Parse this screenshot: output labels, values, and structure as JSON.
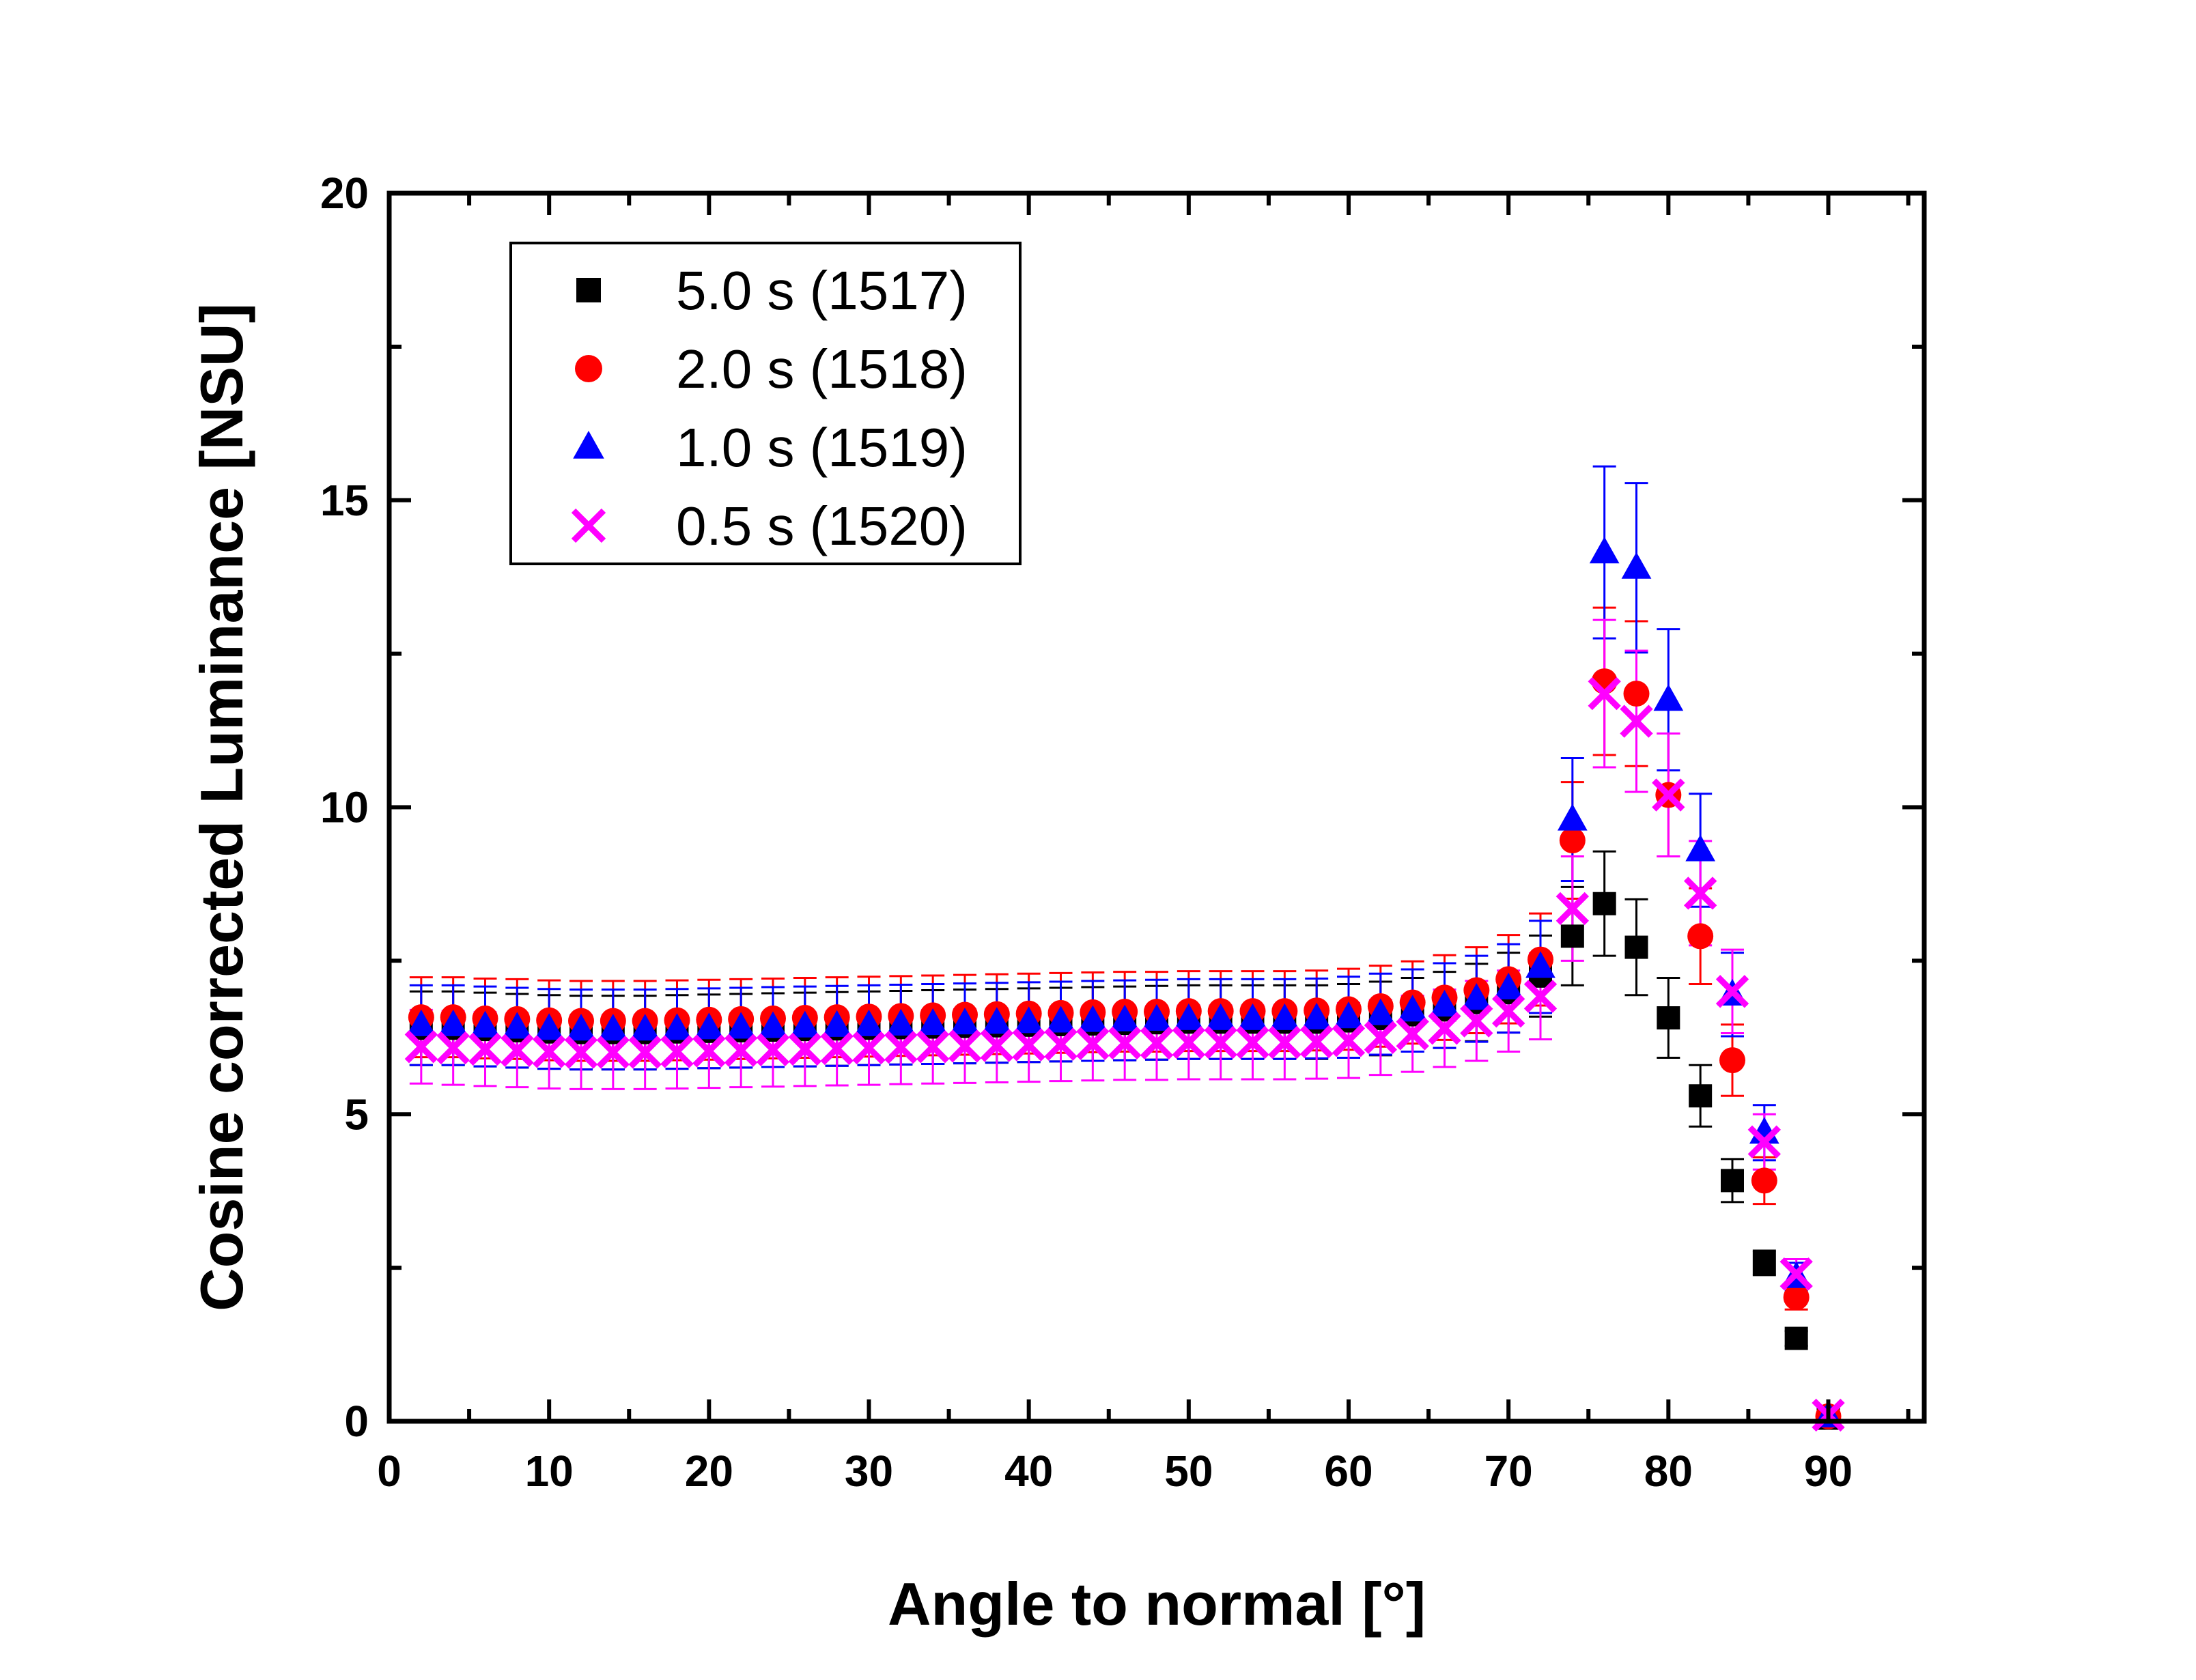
{
  "chart_data": {
    "type": "scatter",
    "title": "",
    "xlabel": "Angle to normal [°]",
    "ylabel": "Cosine corrected Luminance [NSU]",
    "xlim": [
      0,
      96
    ],
    "ylim": [
      0,
      20
    ],
    "xticks": [
      0,
      10,
      20,
      30,
      40,
      50,
      60,
      70,
      80,
      90
    ],
    "xtick_labels": [
      "0",
      "10",
      "20",
      "30",
      "40",
      "50",
      "60",
      "70",
      "80",
      "90"
    ],
    "yticks": [
      0,
      5,
      10,
      15,
      20
    ],
    "ytick_labels": [
      "0",
      "5",
      "10",
      "15",
      "20"
    ],
    "grid": false,
    "legend_position": "top-left",
    "x": [
      2,
      4,
      6,
      8,
      10,
      12,
      14,
      16,
      18,
      20,
      22,
      24,
      26,
      28,
      30,
      32,
      34,
      36,
      38,
      40,
      42,
      44,
      46,
      48,
      50,
      52,
      54,
      56,
      58,
      60,
      62,
      64,
      66,
      68,
      70,
      72,
      74,
      76,
      78,
      80,
      82,
      84,
      86,
      88,
      90
    ],
    "series": [
      {
        "name": "5.0 s (1517)",
        "marker": "square",
        "color": "#000000",
        "values": [
          6.4,
          6.4,
          6.38,
          6.36,
          6.34,
          6.33,
          6.33,
          6.33,
          6.34,
          6.35,
          6.36,
          6.37,
          6.38,
          6.39,
          6.4,
          6.41,
          6.42,
          6.43,
          6.44,
          6.45,
          6.46,
          6.47,
          6.48,
          6.49,
          6.5,
          6.5,
          6.5,
          6.5,
          6.5,
          6.52,
          6.56,
          6.62,
          6.7,
          6.82,
          6.98,
          7.25,
          7.9,
          8.43,
          7.72,
          6.57,
          5.3,
          3.92,
          2.58,
          1.35,
          0.05
        ],
        "errors": [
          0.6,
          0.6,
          0.6,
          0.6,
          0.6,
          0.6,
          0.6,
          0.6,
          0.6,
          0.6,
          0.6,
          0.6,
          0.6,
          0.6,
          0.6,
          0.6,
          0.6,
          0.6,
          0.6,
          0.6,
          0.6,
          0.6,
          0.6,
          0.6,
          0.6,
          0.6,
          0.6,
          0.6,
          0.6,
          0.6,
          0.6,
          0.6,
          0.62,
          0.63,
          0.65,
          0.66,
          0.8,
          0.85,
          0.78,
          0.65,
          0.5,
          0.35,
          0.2,
          0.12,
          0.05
        ]
      },
      {
        "name": "2.0 s (1518)",
        "marker": "circle",
        "color": "#ff0000",
        "values": [
          6.58,
          6.58,
          6.56,
          6.55,
          6.53,
          6.52,
          6.52,
          6.52,
          6.53,
          6.54,
          6.55,
          6.56,
          6.57,
          6.58,
          6.59,
          6.6,
          6.61,
          6.62,
          6.63,
          6.64,
          6.65,
          6.66,
          6.67,
          6.67,
          6.68,
          6.68,
          6.68,
          6.68,
          6.69,
          6.71,
          6.76,
          6.82,
          6.9,
          7.02,
          7.2,
          7.52,
          9.46,
          12.05,
          11.85,
          10.2,
          7.9,
          5.88,
          3.92,
          2.02,
          0.08
        ],
        "errors": [
          0.65,
          0.65,
          0.65,
          0.65,
          0.65,
          0.65,
          0.65,
          0.65,
          0.65,
          0.65,
          0.65,
          0.65,
          0.65,
          0.65,
          0.65,
          0.65,
          0.65,
          0.65,
          0.65,
          0.65,
          0.65,
          0.65,
          0.65,
          0.65,
          0.65,
          0.65,
          0.65,
          0.65,
          0.65,
          0.66,
          0.66,
          0.67,
          0.69,
          0.7,
          0.72,
          0.75,
          0.95,
          1.2,
          1.18,
          1.0,
          0.78,
          0.58,
          0.38,
          0.2,
          0.05
        ]
      },
      {
        "name": "1.0 s (1519)",
        "marker": "triangle",
        "color": "#0000ff",
        "values": [
          6.45,
          6.45,
          6.43,
          6.41,
          6.39,
          6.38,
          6.38,
          6.38,
          6.39,
          6.4,
          6.41,
          6.42,
          6.43,
          6.44,
          6.45,
          6.46,
          6.47,
          6.48,
          6.49,
          6.5,
          6.51,
          6.52,
          6.53,
          6.54,
          6.55,
          6.55,
          6.55,
          6.55,
          6.56,
          6.58,
          6.63,
          6.69,
          6.77,
          6.88,
          7.05,
          7.4,
          9.8,
          14.15,
          13.9,
          11.75,
          9.3,
          6.95,
          4.7,
          2.35,
          0.08
        ],
        "errors": [
          0.65,
          0.65,
          0.65,
          0.65,
          0.65,
          0.65,
          0.65,
          0.65,
          0.65,
          0.65,
          0.65,
          0.65,
          0.65,
          0.65,
          0.65,
          0.65,
          0.65,
          0.65,
          0.65,
          0.65,
          0.65,
          0.65,
          0.65,
          0.65,
          0.65,
          0.65,
          0.65,
          0.65,
          0.65,
          0.66,
          0.66,
          0.67,
          0.69,
          0.7,
          0.72,
          0.75,
          1.0,
          1.4,
          1.38,
          1.15,
          0.92,
          0.68,
          0.45,
          0.23,
          0.05
        ]
      },
      {
        "name": "0.5 s (1520)",
        "marker": "cross",
        "color": "#ff00ff",
        "values": [
          6.1,
          6.08,
          6.06,
          6.04,
          6.02,
          6.01,
          6.01,
          6.01,
          6.02,
          6.03,
          6.04,
          6.05,
          6.06,
          6.07,
          6.08,
          6.09,
          6.1,
          6.11,
          6.12,
          6.13,
          6.14,
          6.15,
          6.16,
          6.16,
          6.17,
          6.17,
          6.17,
          6.17,
          6.18,
          6.2,
          6.25,
          6.31,
          6.4,
          6.52,
          6.68,
          6.92,
          8.35,
          11.85,
          11.4,
          10.2,
          8.6,
          7.0,
          4.55,
          2.4,
          0.1
        ],
        "errors": [
          0.6,
          0.6,
          0.6,
          0.6,
          0.6,
          0.6,
          0.6,
          0.6,
          0.6,
          0.6,
          0.6,
          0.6,
          0.6,
          0.6,
          0.6,
          0.6,
          0.6,
          0.6,
          0.6,
          0.6,
          0.6,
          0.6,
          0.6,
          0.6,
          0.6,
          0.6,
          0.6,
          0.6,
          0.6,
          0.61,
          0.61,
          0.62,
          0.63,
          0.65,
          0.66,
          0.7,
          0.85,
          1.2,
          1.15,
          1.0,
          0.85,
          0.68,
          0.45,
          0.24,
          0.05
        ]
      }
    ]
  }
}
